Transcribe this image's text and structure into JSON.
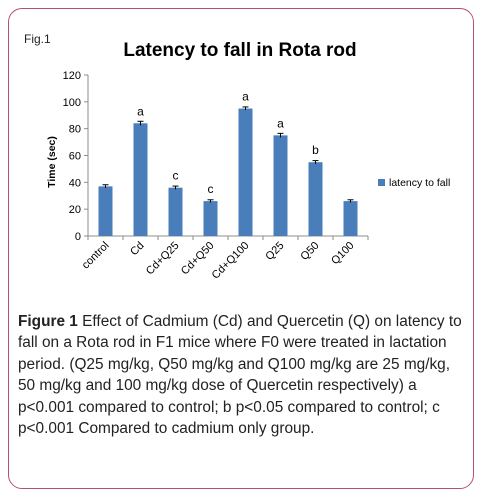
{
  "figure": {
    "label": "Fig.1",
    "caption_label": "Figure 1",
    "caption_text": "Effect of Cadmium (Cd) and Quercetin (Q) on latency to fall on a Rota rod in F1 mice where F0 were treated in lactation period. (Q25 mg/kg, Q50 mg/kg and Q100 mg/kg are 25 mg/kg, 50 mg/kg and 100 mg/kg dose of Quercetin respectively) a p<0.001 compared to control; b p<0.05 compared to control; c p<0.001 Compared to cadmium only group."
  },
  "chart_data": {
    "type": "bar",
    "title": "Latency to fall in Rota rod",
    "xlabel": "",
    "ylabel": "Time (sec)",
    "ylim": [
      0,
      120
    ],
    "yticks": [
      0,
      20,
      40,
      60,
      80,
      100,
      120
    ],
    "grid": false,
    "legend_position": "right",
    "categories": [
      "control",
      "Cd",
      "Cd+Q25",
      "Cd+Q50",
      "Cd+Q100",
      "Q25",
      "Q50",
      "Q100"
    ],
    "series": [
      {
        "name": "latency to fall",
        "color": "#4a7ebb",
        "values": [
          37,
          84,
          36,
          26,
          95,
          75,
          55,
          26
        ],
        "errors": [
          1.2,
          1.5,
          1.2,
          1.0,
          1.2,
          1.5,
          1.2,
          1.0
        ],
        "annotations": [
          "",
          "a",
          "c",
          "c",
          "a",
          "a",
          "b",
          ""
        ]
      }
    ]
  }
}
